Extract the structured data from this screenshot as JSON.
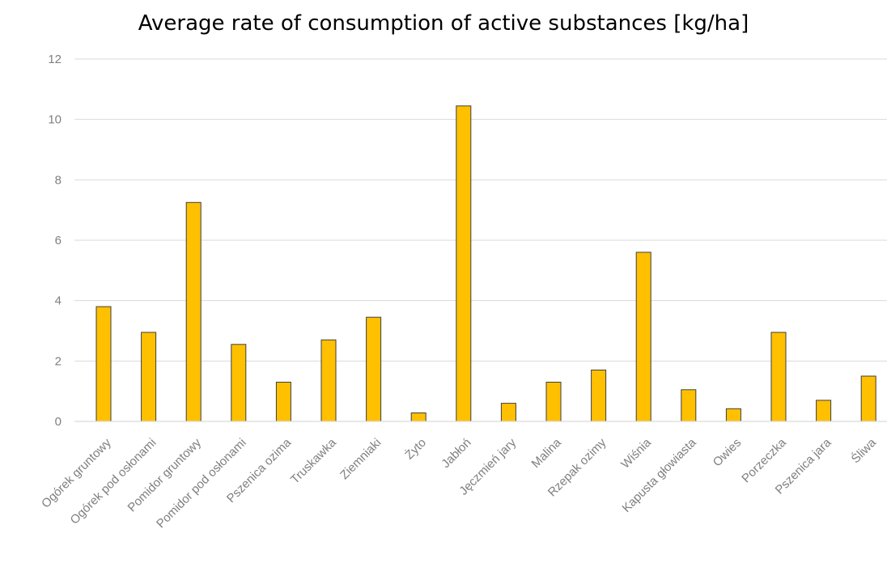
{
  "chart_data": {
    "type": "bar",
    "title": "Average rate of consumption of active substances [kg/ha]",
    "xlabel": "",
    "ylabel": "",
    "ylim": [
      0,
      12
    ],
    "yticks": [
      0,
      2,
      4,
      6,
      8,
      10,
      12
    ],
    "grid": true,
    "legend": "none",
    "bar_color": "#FFC000",
    "bar_border_color": "#3f3f3f",
    "grid_color": "#d9d9d9",
    "tick_color": "#7f7f7f",
    "categories": [
      "Ogórek gruntowy",
      "Ogórek pod osłonami",
      "Pomidor gruntowy",
      "Pomidor pod osłonami",
      "Pszenica ozima",
      "Truskawka",
      "Ziemniaki",
      "Żyto",
      "Jabłoń",
      "Jęczmień jary",
      "Malina",
      "Rzepak ozimy",
      "Wiśnia",
      "Kapusta głowiasta",
      "Owies",
      "Porzeczka",
      "Pszenica jara",
      "Śliwa"
    ],
    "values": [
      3.8,
      2.95,
      7.25,
      2.55,
      1.3,
      2.7,
      3.45,
      0.28,
      10.45,
      0.6,
      1.3,
      1.7,
      5.6,
      1.05,
      0.42,
      2.95,
      0.7,
      1.5
    ]
  }
}
